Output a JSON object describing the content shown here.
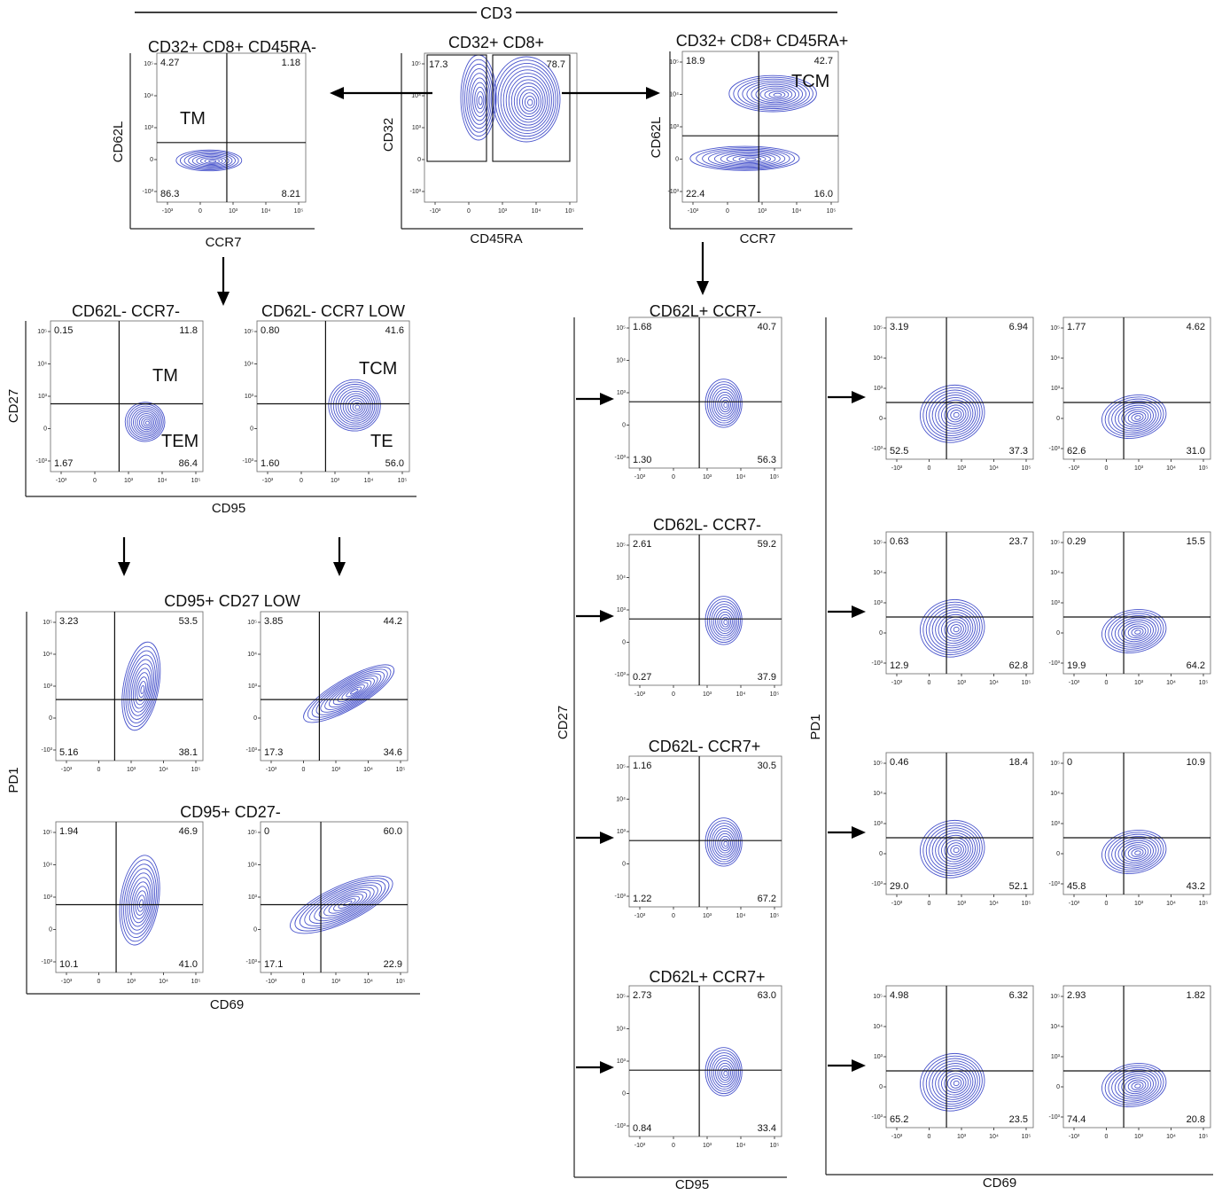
{
  "header": "CD3",
  "top": {
    "left": {
      "title": "CD32+ CD8+ CD45RA-",
      "xlabel": "CCR7",
      "ylabel": "CD62L",
      "q": [
        "4.27",
        "1.18",
        "86.3",
        "8.21"
      ],
      "pop": "TM"
    },
    "center": {
      "title": "CD32+ CD8+",
      "xlabel": "CD45RA",
      "ylabel": "CD32",
      "gates": [
        "17.3",
        "78.7"
      ]
    },
    "right": {
      "title": "CD32+ CD8+ CD45RA+",
      "xlabel": "CCR7",
      "ylabel": "CD62L",
      "q": [
        "18.9",
        "42.7",
        "22.4",
        "16.0"
      ],
      "pop": "TCM"
    }
  },
  "left_cd27": {
    "ylabel": "CD27",
    "xlabel": "CD95",
    "panels": [
      {
        "title": "CD62L- CCR7-",
        "q": [
          "0.15",
          "11.8",
          "1.67",
          "86.4"
        ],
        "pop1": "TM",
        "pop2": "TEM"
      },
      {
        "title": "CD62L- CCR7 LOW",
        "q": [
          "0.80",
          "41.6",
          "1.60",
          "56.0"
        ],
        "pop1": "TCM",
        "pop2": "TE"
      }
    ]
  },
  "left_pd1": {
    "ylabel": "PD1",
    "xlabel": "CD69",
    "row_titles": [
      "CD95+ CD27 LOW",
      "CD95+ CD27-"
    ],
    "panels": [
      {
        "q": [
          "3.23",
          "53.5",
          "5.16",
          "38.1"
        ]
      },
      {
        "q": [
          "3.85",
          "44.2",
          "17.3",
          "34.6"
        ]
      },
      {
        "q": [
          "1.94",
          "46.9",
          "10.1",
          "41.0"
        ]
      },
      {
        "q": [
          "0",
          "60.0",
          "17.1",
          "22.9"
        ]
      }
    ]
  },
  "right_cd27": {
    "ylabel": "CD27",
    "xlabel": "CD95",
    "panels": [
      {
        "title": "CD62L+ CCR7-",
        "q": [
          "1.68",
          "40.7",
          "1.30",
          "56.3"
        ]
      },
      {
        "title": "CD62L- CCR7-",
        "q": [
          "2.61",
          "59.2",
          "0.27",
          "37.9"
        ]
      },
      {
        "title": "CD62L- CCR7+",
        "q": [
          "1.16",
          "30.5",
          "1.22",
          "67.2"
        ]
      },
      {
        "title": "CD62L+ CCR7+",
        "q": [
          "2.73",
          "63.0",
          "0.84",
          "33.4"
        ]
      }
    ]
  },
  "right_pd1": {
    "ylabel": "PD1",
    "xlabel": "CD69",
    "panels": [
      {
        "q": [
          "3.19",
          "6.94",
          "52.5",
          "37.3"
        ]
      },
      {
        "q": [
          "1.77",
          "4.62",
          "62.6",
          "31.0"
        ]
      },
      {
        "q": [
          "0.63",
          "23.7",
          "12.9",
          "62.8"
        ]
      },
      {
        "q": [
          "0.29",
          "15.5",
          "19.9",
          "64.2"
        ]
      },
      {
        "q": [
          "0.46",
          "18.4",
          "29.0",
          "52.1"
        ]
      },
      {
        "q": [
          "0",
          "10.9",
          "45.8",
          "43.2"
        ]
      },
      {
        "q": [
          "4.98",
          "6.32",
          "65.2",
          "23.5"
        ]
      },
      {
        "q": [
          "2.93",
          "1.82",
          "74.4",
          "20.8"
        ]
      }
    ]
  },
  "tick_labels": {
    "x": [
      "-10³",
      "0",
      "10³",
      "10⁴",
      "10⁵"
    ],
    "y": [
      "10⁵",
      "10⁴",
      "10³",
      "0",
      "-10³"
    ]
  },
  "colors": {
    "contour": "#4a55cc",
    "axis": "#222222",
    "gate": "#111111"
  }
}
